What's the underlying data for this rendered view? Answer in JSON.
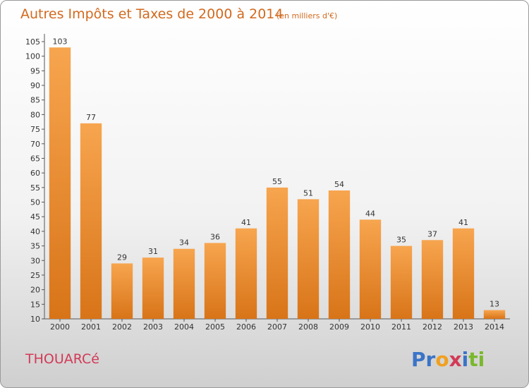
{
  "chart_data": {
    "type": "bar",
    "title": "Autres Impôts et Taxes de 2000 à 2014",
    "subtitle": "(en milliers d'€)",
    "categories": [
      "2000",
      "2001",
      "2002",
      "2003",
      "2004",
      "2005",
      "2006",
      "2007",
      "2008",
      "2009",
      "2010",
      "2011",
      "2012",
      "2013",
      "2014"
    ],
    "values": [
      103,
      77,
      29,
      31,
      34,
      36,
      41,
      55,
      51,
      54,
      44,
      35,
      37,
      41,
      13
    ],
    "ylim": [
      10,
      105
    ],
    "yticks": [
      10,
      15,
      20,
      25,
      30,
      35,
      40,
      45,
      50,
      55,
      60,
      65,
      70,
      75,
      80,
      85,
      90,
      95,
      100,
      105
    ],
    "grid": false,
    "legend": "none"
  },
  "footer": {
    "city": "THOUARCé",
    "logo": "Proxiti"
  },
  "colors": {
    "bar_light": "#f7a54f",
    "bar_dark": "#d87418",
    "title": "#d2691e",
    "city": "#d23a57"
  }
}
